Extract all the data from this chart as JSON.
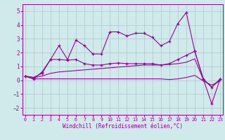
{
  "x": [
    0,
    1,
    2,
    3,
    4,
    5,
    6,
    7,
    8,
    9,
    10,
    11,
    12,
    13,
    14,
    15,
    16,
    17,
    18,
    19,
    20,
    21,
    22,
    23
  ],
  "line_main": [
    0.3,
    0.1,
    0.6,
    1.5,
    2.5,
    1.5,
    2.9,
    2.5,
    1.9,
    1.9,
    3.5,
    3.5,
    3.2,
    3.4,
    3.4,
    3.1,
    2.5,
    2.8,
    4.1,
    4.9,
    2.1,
    0.1,
    -1.7,
    0.1
  ],
  "line_upper": [
    0.3,
    0.2,
    0.5,
    1.5,
    1.5,
    1.45,
    1.5,
    1.2,
    1.1,
    1.1,
    1.2,
    1.25,
    1.2,
    1.2,
    1.2,
    1.2,
    1.1,
    1.2,
    1.5,
    1.8,
    2.1,
    0.1,
    -0.5,
    0.1
  ],
  "line_band_top": [
    0.3,
    0.2,
    0.3,
    0.5,
    0.6,
    0.65,
    0.7,
    0.75,
    0.8,
    0.85,
    0.9,
    0.95,
    1.0,
    1.05,
    1.1,
    1.1,
    1.1,
    1.15,
    1.2,
    1.3,
    1.55,
    0.05,
    -0.5,
    0.05
  ],
  "line_band_bot": [
    0.3,
    0.1,
    0.1,
    0.1,
    0.1,
    0.1,
    0.1,
    0.1,
    0.1,
    0.1,
    0.1,
    0.1,
    0.1,
    0.1,
    0.1,
    0.1,
    0.1,
    0.05,
    0.1,
    0.2,
    0.35,
    -0.05,
    -0.35,
    -0.05
  ],
  "color": "#990099",
  "bgcolor": "#d0eaec",
  "grid_color": "#a8c8ca",
  "ylim": [
    -2.5,
    5.5
  ],
  "xlim": [
    -0.3,
    23.3
  ],
  "yticks": [
    -2,
    -1,
    0,
    1,
    2,
    3,
    4,
    5
  ],
  "xticks": [
    0,
    1,
    2,
    3,
    4,
    5,
    6,
    7,
    8,
    9,
    10,
    11,
    12,
    13,
    14,
    15,
    16,
    17,
    18,
    19,
    20,
    21,
    22,
    23
  ],
  "xlabel": "Windchill (Refroidissement éolien,°C)"
}
